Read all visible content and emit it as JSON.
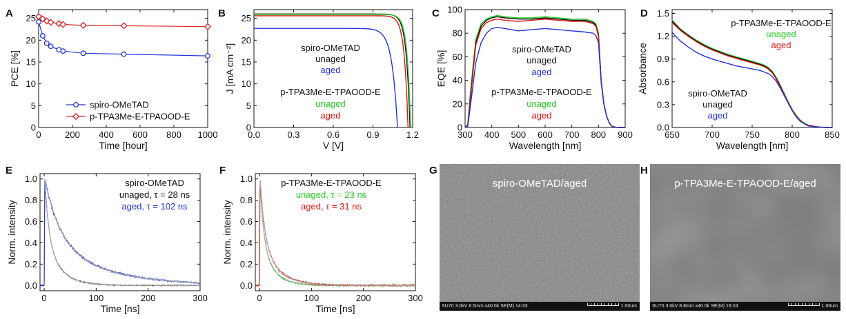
{
  "panels": [
    {
      "letter": "A"
    },
    {
      "letter": "B"
    },
    {
      "letter": "C"
    },
    {
      "letter": "D"
    },
    {
      "letter": "E"
    },
    {
      "letter": "F"
    },
    {
      "letter": "G"
    },
    {
      "letter": "H"
    }
  ],
  "colors": {
    "spiro": "#2233dd",
    "ptpa": "#dd2222",
    "aged": "#2233dd",
    "unaged": "#22cc22",
    "red": "#dd1111",
    "black": "#111111",
    "fit": "#aaaaaa"
  },
  "chart_data": [
    {
      "panel": "A",
      "type": "line",
      "xlabel": "Time [hour]",
      "ylabel": "PCE [%]",
      "xlim": [
        0,
        1000
      ],
      "ylim": [
        0,
        27
      ],
      "xticks": [
        0,
        200,
        400,
        600,
        800,
        1000
      ],
      "yticks": [
        0,
        5,
        10,
        15,
        20,
        25
      ],
      "legend_position": "bottom-left",
      "series": [
        {
          "name": "spiro-OMeTAD",
          "color": "#2233dd",
          "marker": "circle",
          "x": [
            0,
            24,
            48,
            72,
            120,
            144,
            264,
            504,
            1000
          ],
          "y": [
            24.2,
            21.0,
            19.3,
            18.6,
            17.8,
            17.5,
            17.0,
            16.8,
            16.4
          ]
        },
        {
          "name": "p-TPA3Me-E-TPAOOD-E",
          "color": "#dd2222",
          "marker": "diamond",
          "x": [
            0,
            24,
            48,
            72,
            120,
            144,
            264,
            504,
            1000
          ],
          "y": [
            25.4,
            24.9,
            24.4,
            24.1,
            23.8,
            23.6,
            23.4,
            23.3,
            23.1
          ]
        }
      ]
    },
    {
      "panel": "B",
      "type": "line",
      "xlabel": "V [V]",
      "ylabel": "J [mA cm⁻²]",
      "xlim": [
        0,
        1.2
      ],
      "ylim": [
        0,
        27
      ],
      "xticks": [
        0.0,
        0.3,
        0.6,
        0.9,
        1.2
      ],
      "yticks": [
        0,
        5,
        10,
        15,
        20,
        25
      ],
      "annotations": [
        {
          "text": "spiro-OMeTAD",
          "color": "#111111"
        },
        {
          "text": "unaged",
          "color": "#111111"
        },
        {
          "text": "aged",
          "color": "#2233dd"
        },
        {
          "text": "p-TPA3Me-E-TPAOOD-E",
          "color": "#111111"
        },
        {
          "text": "unaged",
          "color": "#22cc22"
        },
        {
          "text": "aged",
          "color": "#dd1111"
        }
      ],
      "series": [
        {
          "color": "#111111",
          "jsc": 26.0,
          "voc": 1.18,
          "n": 1.1
        },
        {
          "color": "#2233dd",
          "jsc": 22.7,
          "voc": 1.085,
          "n": 1.6
        },
        {
          "color": "#22cc22",
          "jsc": 25.9,
          "voc": 1.185,
          "n": 1.05
        },
        {
          "color": "#dd1111",
          "jsc": 25.6,
          "voc": 1.165,
          "n": 1.1
        }
      ]
    },
    {
      "panel": "C",
      "type": "line",
      "xlabel": "Wavelength [nm]",
      "ylabel": "EQE [%]",
      "xlim": [
        300,
        900
      ],
      "ylim": [
        0,
        100
      ],
      "xticks": [
        300,
        400,
        500,
        600,
        700,
        800,
        900
      ],
      "yticks": [
        0,
        20,
        40,
        60,
        80,
        100
      ],
      "annotations": [
        {
          "text": "spiro-OMeTAD",
          "color": "#111111"
        },
        {
          "text": "unaged",
          "color": "#111111"
        },
        {
          "text": "aged",
          "color": "#2233dd"
        },
        {
          "text": "p-TPA3Me-E-TPAOOD-E",
          "color": "#111111"
        },
        {
          "text": "unaged",
          "color": "#22cc22"
        },
        {
          "text": "aged",
          "color": "#dd1111"
        }
      ],
      "series": [
        {
          "color": "#22cc22",
          "x": [
            300,
            310,
            320,
            340,
            360,
            380,
            400,
            420,
            450,
            500,
            550,
            600,
            650,
            700,
            750,
            780,
            790,
            800,
            810,
            820,
            830,
            840,
            850,
            870,
            900
          ],
          "y": [
            0,
            3,
            30,
            75,
            88,
            92,
            94,
            95,
            94,
            93,
            93,
            94,
            93,
            92,
            92,
            90,
            88,
            80,
            40,
            20,
            10,
            4,
            1,
            0,
            0
          ]
        },
        {
          "color": "#111111",
          "x": [
            300,
            310,
            320,
            340,
            360,
            380,
            400,
            420,
            450,
            500,
            550,
            600,
            650,
            700,
            750,
            780,
            790,
            800,
            810,
            820,
            830,
            840,
            850,
            870,
            900
          ],
          "y": [
            0,
            2,
            26,
            72,
            86,
            91,
            93,
            94,
            93,
            92,
            92,
            93,
            92,
            91,
            91,
            89,
            87,
            78,
            40,
            20,
            10,
            4,
            1,
            0,
            0
          ]
        },
        {
          "color": "#dd1111",
          "x": [
            300,
            310,
            320,
            340,
            360,
            380,
            400,
            420,
            450,
            500,
            550,
            600,
            650,
            700,
            750,
            780,
            790,
            800,
            810,
            820,
            830,
            840,
            850,
            870,
            900
          ],
          "y": [
            0,
            2,
            24,
            70,
            84,
            89,
            91,
            92,
            91,
            90,
            91,
            92,
            91,
            90,
            90,
            88,
            86,
            77,
            40,
            20,
            10,
            4,
            1,
            0,
            0
          ]
        },
        {
          "color": "#2233dd",
          "x": [
            300,
            310,
            320,
            340,
            360,
            380,
            400,
            420,
            450,
            500,
            550,
            600,
            650,
            700,
            750,
            780,
            790,
            800,
            810,
            820,
            830,
            840,
            850,
            870,
            900
          ],
          "y": [
            0,
            1,
            18,
            55,
            72,
            80,
            84,
            85,
            84,
            82,
            83,
            84,
            83,
            82,
            81,
            80,
            78,
            72,
            38,
            20,
            10,
            4,
            1,
            0,
            0
          ]
        }
      ]
    },
    {
      "panel": "D",
      "type": "line",
      "xlabel": "Wavelength [nm]",
      "ylabel": "Absorbance",
      "xlim": [
        650,
        850
      ],
      "ylim": [
        0,
        1.55
      ],
      "xticks": [
        650,
        700,
        750,
        800,
        850
      ],
      "yticks": [
        0.0,
        0.3,
        0.6,
        0.9,
        1.2,
        1.5
      ],
      "annotations": [
        {
          "text": "p-TPA3Me-E-TPAOOD-E",
          "color": "#111111"
        },
        {
          "text": "unaged",
          "color": "#22cc22"
        },
        {
          "text": "aged",
          "color": "#dd1111"
        },
        {
          "text": "spiro-OMeTAD",
          "color": "#111111"
        },
        {
          "text": "unaged",
          "color": "#111111"
        },
        {
          "text": "aged",
          "color": "#2233dd"
        }
      ],
      "series": [
        {
          "color": "#22cc22",
          "x": [
            650,
            660,
            670,
            680,
            690,
            700,
            710,
            720,
            730,
            740,
            750,
            760,
            765,
            770,
            775,
            780,
            785,
            790,
            795,
            800,
            805,
            810,
            815,
            820,
            830,
            840,
            850
          ],
          "y": [
            1.41,
            1.3,
            1.22,
            1.15,
            1.09,
            1.04,
            1.0,
            0.96,
            0.93,
            0.9,
            0.87,
            0.84,
            0.82,
            0.79,
            0.74,
            0.66,
            0.56,
            0.45,
            0.34,
            0.24,
            0.16,
            0.1,
            0.06,
            0.03,
            0.01,
            0.0,
            0.0
          ]
        },
        {
          "color": "#111111",
          "x": [
            650,
            660,
            670,
            680,
            690,
            700,
            710,
            720,
            730,
            740,
            750,
            760,
            765,
            770,
            775,
            780,
            785,
            790,
            795,
            800,
            805,
            810,
            815,
            820,
            830,
            840,
            850
          ],
          "y": [
            1.4,
            1.29,
            1.21,
            1.14,
            1.08,
            1.03,
            0.99,
            0.95,
            0.92,
            0.89,
            0.86,
            0.83,
            0.81,
            0.78,
            0.73,
            0.65,
            0.55,
            0.44,
            0.33,
            0.23,
            0.15,
            0.09,
            0.05,
            0.03,
            0.01,
            0.0,
            0.0
          ]
        },
        {
          "color": "#dd1111",
          "x": [
            650,
            660,
            670,
            680,
            690,
            700,
            710,
            720,
            730,
            740,
            750,
            760,
            765,
            770,
            775,
            780,
            785,
            790,
            795,
            800,
            805,
            810,
            815,
            820,
            830,
            840,
            850
          ],
          "y": [
            1.38,
            1.28,
            1.2,
            1.13,
            1.07,
            1.02,
            0.98,
            0.94,
            0.91,
            0.88,
            0.85,
            0.82,
            0.8,
            0.77,
            0.72,
            0.64,
            0.54,
            0.44,
            0.33,
            0.23,
            0.15,
            0.09,
            0.05,
            0.03,
            0.01,
            0.0,
            0.0
          ]
        },
        {
          "color": "#2233dd",
          "x": [
            650,
            660,
            670,
            680,
            690,
            700,
            710,
            720,
            730,
            740,
            750,
            760,
            765,
            770,
            775,
            780,
            785,
            790,
            795,
            800,
            805,
            810,
            815,
            820,
            830,
            840,
            850
          ],
          "y": [
            1.25,
            1.14,
            1.06,
            0.99,
            0.94,
            0.9,
            0.87,
            0.84,
            0.81,
            0.79,
            0.77,
            0.75,
            0.73,
            0.71,
            0.67,
            0.61,
            0.52,
            0.42,
            0.32,
            0.22,
            0.14,
            0.08,
            0.05,
            0.02,
            0.01,
            0.0,
            0.0
          ]
        }
      ]
    },
    {
      "panel": "E",
      "type": "line",
      "xlabel": "Time [ns]",
      "ylabel": "Norm. intensity",
      "xlim": [
        -8,
        300
      ],
      "ylim": [
        -0.05,
        1.05
      ],
      "xticks": [
        0,
        100,
        200,
        300
      ],
      "yticks": [
        0.0,
        0.2,
        0.4,
        0.6,
        0.8,
        1.0
      ],
      "annotations": [
        {
          "text": "spiro-OMeTAD",
          "color": "#111111"
        },
        {
          "text": "unaged, τ = 28 ns",
          "color": "#111111"
        },
        {
          "text": "aged, τ = 102 ns",
          "color": "#2233dd"
        }
      ],
      "series": [
        {
          "name": "unaged",
          "color": "#111111",
          "tau": 28,
          "noise": 0.012
        },
        {
          "name": "aged",
          "color": "#2233dd",
          "tau": 102,
          "noise": 0.018
        }
      ]
    },
    {
      "panel": "F",
      "type": "line",
      "xlabel": "Time [ns]",
      "ylabel": "Norm. intensity",
      "xlim": [
        -8,
        300
      ],
      "ylim": [
        -0.05,
        1.05
      ],
      "xticks": [
        0,
        100,
        200,
        300
      ],
      "yticks": [
        0.0,
        0.2,
        0.4,
        0.6,
        0.8,
        1.0
      ],
      "annotations": [
        {
          "text": "p-TPA3Me-E-TPAOOD-E",
          "color": "#111111"
        },
        {
          "text": "unaged, τ = 23 ns",
          "color": "#22cc22"
        },
        {
          "text": "aged, τ = 31 ns",
          "color": "#dd1111"
        }
      ],
      "series": [
        {
          "name": "unaged",
          "color": "#22cc22",
          "tau": 23,
          "noise": 0.02
        },
        {
          "name": "aged",
          "color": "#dd1111",
          "tau": 31,
          "noise": 0.022
        }
      ]
    }
  ],
  "sem_images": [
    {
      "panel": "G",
      "title": "spiro-OMeTAD/aged",
      "info": "SU70 3.0kV 8.5mm x40.0k SE(M) 14:33",
      "scale": "1.00um"
    },
    {
      "panel": "H",
      "title": "p-TPA3Me-E-TPAOOD-E/aged",
      "info": "SU70 3.0kV 8.8mm x40.0k SE(M) 16:24",
      "scale": "1.00um"
    }
  ]
}
